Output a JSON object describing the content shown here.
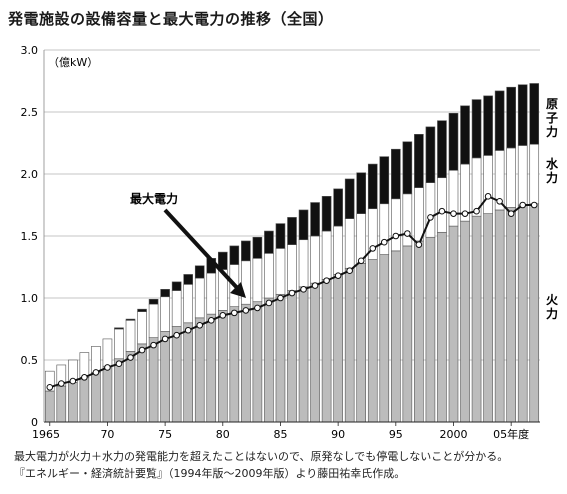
{
  "title": "発電施設の設備容量と最大電力の推移（全国）",
  "notes": [
    "最大電力が火力＋水力の発電能力を超えたことはないので、原発なしでも停電しないことが分かる。",
    "『エネルギー・経済統計要覧』（1994年版～2009年版）より藤田祐幸氏作成。"
  ],
  "colors": {
    "thermal": "#bcbcbc",
    "hydro": "#ffffff",
    "nuclear": "#111111",
    "peak_line": "#111111",
    "grid": "#b3b3b3"
  },
  "chart_data": {
    "type": "bar",
    "stacked": true,
    "ylabel": "（億kW）",
    "ylim": [
      0,
      3.0
    ],
    "yticks": [
      "0",
      "0.5",
      "1.0",
      "1.5",
      "2.0",
      "2.5",
      "3.0"
    ],
    "xtick_labels": [
      "1965",
      "70",
      "75",
      "80",
      "85",
      "90",
      "95",
      "2000",
      "05年度"
    ],
    "grid": true,
    "categories": [
      1965,
      1966,
      1967,
      1968,
      1969,
      1970,
      1971,
      1972,
      1973,
      1974,
      1975,
      1976,
      1977,
      1978,
      1979,
      1980,
      1981,
      1982,
      1983,
      1984,
      1985,
      1986,
      1987,
      1988,
      1989,
      1990,
      1991,
      1992,
      1993,
      1994,
      1995,
      1996,
      1997,
      1998,
      1999,
      2000,
      2001,
      2002,
      2003,
      2004,
      2005,
      2006,
      2007
    ],
    "series": [
      {
        "name": "火力",
        "values": [
          0.25,
          0.29,
          0.32,
          0.36,
          0.4,
          0.45,
          0.51,
          0.57,
          0.63,
          0.68,
          0.73,
          0.77,
          0.8,
          0.84,
          0.87,
          0.9,
          0.93,
          0.95,
          0.97,
          1.0,
          1.03,
          1.06,
          1.09,
          1.12,
          1.15,
          1.19,
          1.24,
          1.28,
          1.31,
          1.35,
          1.38,
          1.42,
          1.46,
          1.49,
          1.53,
          1.58,
          1.62,
          1.66,
          1.68,
          1.71,
          1.73,
          1.75,
          1.76
        ]
      },
      {
        "name": "水力",
        "values": [
          0.16,
          0.17,
          0.18,
          0.2,
          0.21,
          0.22,
          0.24,
          0.25,
          0.26,
          0.27,
          0.28,
          0.29,
          0.31,
          0.32,
          0.33,
          0.33,
          0.34,
          0.35,
          0.35,
          0.36,
          0.37,
          0.37,
          0.38,
          0.38,
          0.39,
          0.39,
          0.4,
          0.4,
          0.41,
          0.41,
          0.42,
          0.42,
          0.43,
          0.44,
          0.44,
          0.45,
          0.46,
          0.47,
          0.47,
          0.48,
          0.48,
          0.48,
          0.48
        ]
      },
      {
        "name": "原子力",
        "values": [
          0.0,
          0.0,
          0.0,
          0.0,
          0.0,
          0.0,
          0.01,
          0.01,
          0.02,
          0.04,
          0.06,
          0.07,
          0.08,
          0.1,
          0.12,
          0.14,
          0.15,
          0.16,
          0.17,
          0.18,
          0.2,
          0.22,
          0.24,
          0.27,
          0.28,
          0.3,
          0.32,
          0.33,
          0.36,
          0.38,
          0.4,
          0.42,
          0.43,
          0.45,
          0.46,
          0.46,
          0.47,
          0.47,
          0.48,
          0.48,
          0.49,
          0.49,
          0.49
        ]
      }
    ],
    "peak_demand": {
      "name": "最大電力",
      "values": [
        0.28,
        0.31,
        0.33,
        0.36,
        0.4,
        0.44,
        0.47,
        0.52,
        0.58,
        0.62,
        0.67,
        0.7,
        0.74,
        0.78,
        0.82,
        0.86,
        0.88,
        0.9,
        0.92,
        0.96,
        1.0,
        1.04,
        1.07,
        1.1,
        1.14,
        1.18,
        1.22,
        1.3,
        1.4,
        1.45,
        1.5,
        1.52,
        1.43,
        1.65,
        1.7,
        1.68,
        1.68,
        1.7,
        1.82,
        1.78,
        1.68,
        1.75,
        1.75
      ]
    },
    "series_labels": [
      "原子力",
      "水力",
      "火力"
    ],
    "annotation": "最大電力"
  }
}
